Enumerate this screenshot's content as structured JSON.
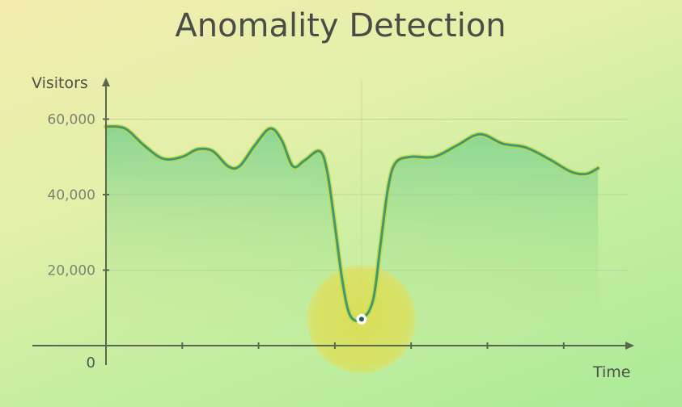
{
  "chart_data": {
    "type": "area",
    "title": "Anomality Detection",
    "xlabel": "Time",
    "ylabel": "Visitors",
    "ylim": [
      0,
      70000
    ],
    "y_ticks": [
      0,
      20000,
      40000,
      60000
    ],
    "y_tick_labels": [
      "0",
      "20,000",
      "40,000",
      "60,000"
    ],
    "x_ticks": [
      1,
      2,
      3,
      4,
      5,
      6
    ],
    "xlim": [
      0,
      6.9
    ],
    "grid": true,
    "series": [
      {
        "values": [
          [
            0.0,
            58000
          ],
          [
            0.25,
            57500
          ],
          [
            0.5,
            53000
          ],
          [
            0.75,
            49500
          ],
          [
            1.0,
            50000
          ],
          [
            1.2,
            52000
          ],
          [
            1.4,
            51500
          ],
          [
            1.6,
            47500
          ],
          [
            1.75,
            47500
          ],
          [
            1.95,
            53000
          ],
          [
            2.15,
            57500
          ],
          [
            2.3,
            54500
          ],
          [
            2.45,
            47500
          ],
          [
            2.6,
            49000
          ],
          [
            2.8,
            51500
          ],
          [
            2.9,
            46000
          ],
          [
            3.0,
            32000
          ],
          [
            3.1,
            17000
          ],
          [
            3.2,
            8000
          ],
          [
            3.35,
            7000
          ],
          [
            3.5,
            12000
          ],
          [
            3.6,
            27000
          ],
          [
            3.7,
            42000
          ],
          [
            3.8,
            48500
          ],
          [
            4.0,
            50000
          ],
          [
            4.3,
            50000
          ],
          [
            4.6,
            53000
          ],
          [
            4.9,
            56000
          ],
          [
            5.2,
            53500
          ],
          [
            5.5,
            52500
          ],
          [
            5.8,
            49500
          ],
          [
            6.1,
            46000
          ],
          [
            6.3,
            45500
          ],
          [
            6.45,
            47000
          ]
        ]
      }
    ],
    "annotations": [
      {
        "type": "anomaly-highlight",
        "x": 3.35,
        "y": 7000
      }
    ],
    "colors": {
      "line": "#3e9a72",
      "line_glow": "#c8d43c",
      "area_top": "#6ccd8a",
      "highlight": "#dede50",
      "axis": "#5a6650"
    }
  }
}
